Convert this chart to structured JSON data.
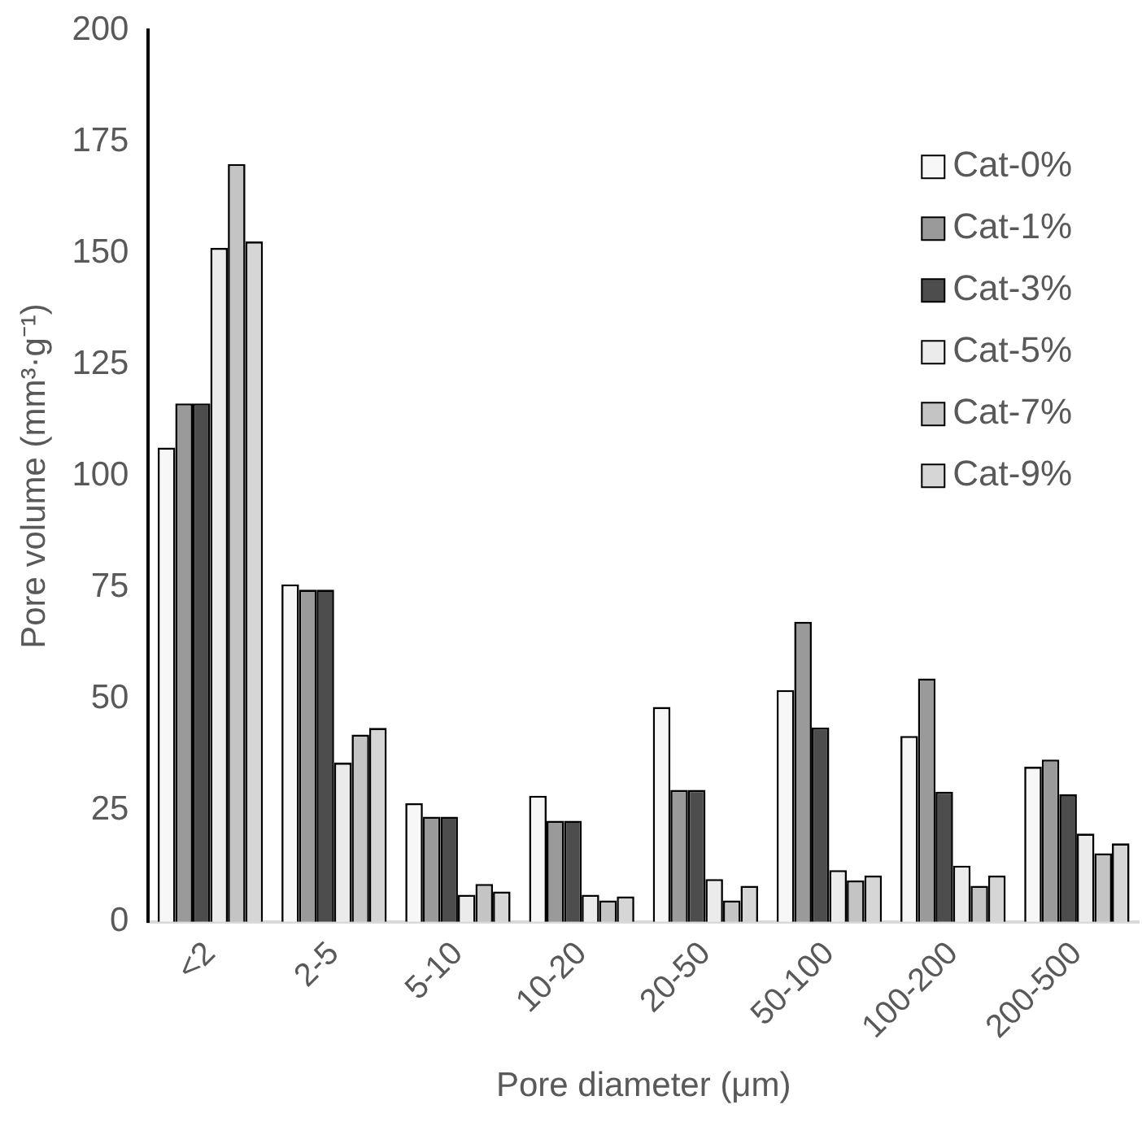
{
  "chart_data": {
    "type": "bar",
    "xlabel": "Pore diameter (μm)",
    "ylabel": "Pore volume (mm³·g⁻¹)",
    "categories": [
      "<2",
      "2-5",
      "5-10",
      "10-20",
      "20-50",
      "50-100",
      "100-200",
      "200-500"
    ],
    "series": [
      {
        "name": "Cat-0%",
        "color": "#f7f7f7",
        "values": [
          106.4,
          75.7,
          26.6,
          28.3,
          48.2,
          52,
          41.7,
          34.8
        ]
      },
      {
        "name": "Cat-1%",
        "color": "#9a9a9a",
        "values": [
          116.3,
          74.5,
          23.6,
          22.7,
          29.6,
          67.3,
          54.6,
          36.4
        ]
      },
      {
        "name": "Cat-3%",
        "color": "#4d4d4d",
        "values": [
          116.3,
          74.5,
          23.6,
          22.7,
          29.6,
          43.6,
          29.2,
          28.6
        ]
      },
      {
        "name": "Cat-5%",
        "color": "#ebebeb",
        "values": [
          151.2,
          35.7,
          6.1,
          6.1,
          9.6,
          11.6,
          12.6,
          19.8
        ]
      },
      {
        "name": "Cat-7%",
        "color": "#c4c4c4",
        "values": [
          170,
          42,
          8.5,
          4.8,
          4.8,
          9.3,
          8.1,
          15.4
        ]
      },
      {
        "name": "Cat-9%",
        "color": "#d6d6d6",
        "values": [
          152.6,
          43.5,
          6.8,
          5.7,
          8.1,
          10.4,
          10.4,
          17.6
        ]
      }
    ],
    "ylim": [
      0,
      200
    ],
    "yticks": [
      0,
      25,
      50,
      75,
      100,
      125,
      150,
      175,
      200
    ],
    "grid": false,
    "legend": "top right"
  }
}
